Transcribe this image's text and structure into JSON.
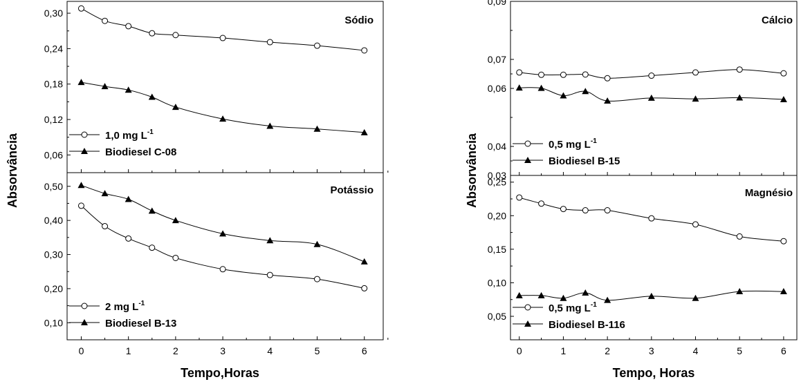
{
  "chart_data": [
    {
      "type": "line",
      "title": "Sódio",
      "xlabel": "Tempo,Horas",
      "ylabel": "Absorvância",
      "x": [
        0,
        0.5,
        1,
        1.5,
        2,
        3,
        4,
        5,
        6
      ],
      "xlim": [
        -0.3,
        6.4
      ],
      "xticks": [
        "0",
        "1",
        "2",
        "3",
        "4",
        "5",
        "6"
      ],
      "ylim": [
        0.03,
        0.32
      ],
      "yticks": [
        "0,06",
        "0,12",
        "0,18",
        "0,24",
        "0,30"
      ],
      "legend_position": "bottom-left",
      "series": [
        {
          "name": "1,0 mg L",
          "name_sup": "-1",
          "marker": "open-circle",
          "values": [
            0.308,
            0.287,
            0.278,
            0.266,
            0.263,
            0.258,
            0.251,
            0.245,
            0.237
          ]
        },
        {
          "name": "Biodiesel C-08",
          "marker": "filled-triangle",
          "values": [
            0.183,
            0.176,
            0.17,
            0.158,
            0.141,
            0.121,
            0.109,
            0.104,
            0.098
          ]
        }
      ]
    },
    {
      "type": "line",
      "title": "Potássio",
      "xlabel": "Tempo,Horas",
      "ylabel": "Absorvância",
      "x": [
        0,
        0.5,
        1,
        1.5,
        2,
        3,
        4,
        5,
        6
      ],
      "xlim": [
        -0.3,
        6.4
      ],
      "xticks": [
        "0",
        "1",
        "2",
        "3",
        "4",
        "5",
        "6"
      ],
      "ylim": [
        0.05,
        0.54
      ],
      "yticks": [
        "0,10",
        "0,20",
        "0,30",
        "0,40",
        "0,50"
      ],
      "legend_position": "bottom-left",
      "series": [
        {
          "name": "2 mg L",
          "name_sup": "-1",
          "marker": "open-circle",
          "values": [
            0.443,
            0.383,
            0.347,
            0.32,
            0.29,
            0.257,
            0.24,
            0.228,
            0.201
          ]
        },
        {
          "name": "Biodiesel B-13",
          "marker": "filled-triangle",
          "values": [
            0.503,
            0.479,
            0.462,
            0.428,
            0.4,
            0.361,
            0.341,
            0.33,
            0.279
          ]
        }
      ]
    },
    {
      "type": "line",
      "title": "Cálcio",
      "xlabel": "Tempo, Horas",
      "ylabel": "Absorvância",
      "x": [
        0,
        0.5,
        1,
        1.5,
        2,
        3,
        4,
        5,
        6
      ],
      "xlim": [
        -0.2,
        6.3
      ],
      "xticks": [
        "0",
        "1",
        "2",
        "3",
        "4",
        "5",
        "6"
      ],
      "ylim": [
        0.03,
        0.09
      ],
      "yticks": [
        "0,03",
        "0,04",
        "0,06",
        "0,07",
        "0,09"
      ],
      "legend_position": "bottom-left",
      "series": [
        {
          "name": "0,5 mg L",
          "name_sup": "-1",
          "marker": "open-circle",
          "values": [
            0.0655,
            0.0647,
            0.0647,
            0.0648,
            0.0635,
            0.0644,
            0.0655,
            0.0665,
            0.0652
          ]
        },
        {
          "name": "Biodiesel B-15",
          "marker": "filled-triangle",
          "values": [
            0.0602,
            0.0601,
            0.0575,
            0.059,
            0.0557,
            0.0567,
            0.0564,
            0.0568,
            0.0562
          ]
        }
      ]
    },
    {
      "type": "line",
      "title": "Magnésio",
      "xlabel": "Tempo, Horas",
      "ylabel": "Absorvância",
      "x": [
        0,
        0.5,
        1,
        1.5,
        2,
        3,
        4,
        5,
        6
      ],
      "xlim": [
        -0.2,
        6.3
      ],
      "xticks": [
        "0",
        "1",
        "2",
        "3",
        "4",
        "5",
        "6"
      ],
      "ylim": [
        0.015,
        0.26
      ],
      "yticks": [
        "0,05",
        "0,10",
        "0,15",
        "0,20",
        "0,25"
      ],
      "legend_position": "bottom-left",
      "series": [
        {
          "name": "0,5 mg L",
          "name_sup": "-1",
          "marker": "open-circle",
          "values": [
            0.227,
            0.218,
            0.21,
            0.208,
            0.208,
            0.196,
            0.187,
            0.169,
            0.162
          ]
        },
        {
          "name": "Biodiesel B-116",
          "marker": "filled-triangle",
          "values": [
            0.081,
            0.081,
            0.077,
            0.085,
            0.074,
            0.08,
            0.077,
            0.087,
            0.087
          ]
        }
      ]
    }
  ]
}
